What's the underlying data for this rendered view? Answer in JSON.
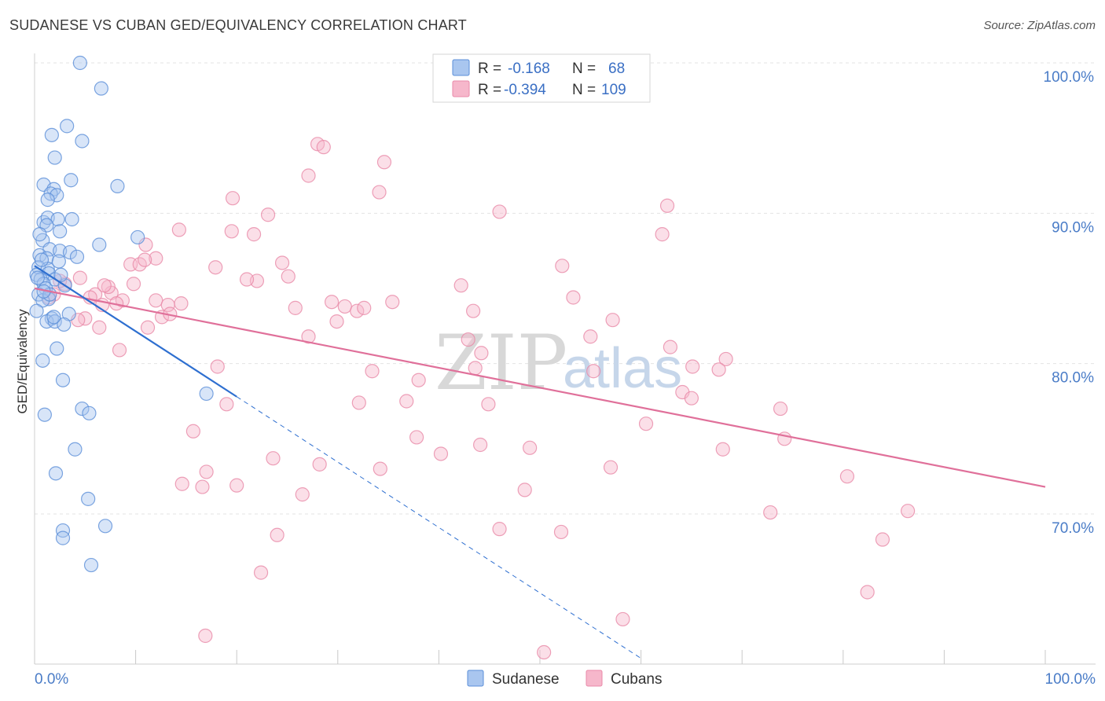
{
  "header": {
    "title": "SUDANESE VS CUBAN GED/EQUIVALENCY CORRELATION CHART",
    "source": "Source: ZipAtlas.com"
  },
  "watermark": {
    "part1": "ZIP",
    "part2": "atlas"
  },
  "legend": {
    "rows": [
      {
        "r_label": "R =",
        "r_value": "-0.168",
        "n_label": "N =",
        "n_value": "68",
        "color": "#a9c6ef"
      },
      {
        "r_label": "R =",
        "r_value": "-0.394",
        "n_label": "N =",
        "n_value": "109",
        "color": "#f6b7cb"
      }
    ]
  },
  "bottom_legend": {
    "items": [
      "Sudanese",
      "Cubans"
    ]
  },
  "colors": {
    "sudanese_fill": "#a9c6ef",
    "sudanese_stroke": "#5b8fd8",
    "sudanese_line": "#2e6fd0",
    "cubans_fill": "#f6b7cb",
    "cubans_stroke": "#e98aa8",
    "cubans_line": "#e0709a",
    "grid": "#e3e3e3",
    "axis_text": "#4a7cc7"
  },
  "chart_data": {
    "type": "scatter",
    "title": "SUDANESE VS CUBAN GED/EQUIVALENCY CORRELATION CHART",
    "xlabel": "",
    "ylabel": "GED/Equivalency",
    "xlim": [
      0,
      100
    ],
    "ylim": [
      60,
      101
    ],
    "x_tick_labels": [
      "0.0%",
      "100.0%"
    ],
    "y_ticks": [
      70,
      80,
      90,
      100
    ],
    "y_tick_labels": [
      "70.0%",
      "80.0%",
      "90.0%",
      "100.0%"
    ],
    "series": [
      {
        "name": "Sudanese",
        "r": -0.168,
        "n": 68,
        "trend": {
          "x0": 0,
          "y0": 86.5,
          "x1": 20,
          "y1": 77.8,
          "dashed_to_x": 60,
          "dashed_to_y": 60.4
        },
        "points": [
          [
            4.5,
            100.0
          ],
          [
            6.6,
            98.3
          ],
          [
            3.2,
            95.8
          ],
          [
            1.7,
            95.2
          ],
          [
            4.7,
            94.8
          ],
          [
            2.0,
            93.7
          ],
          [
            3.6,
            92.2
          ],
          [
            0.9,
            91.9
          ],
          [
            1.9,
            91.6
          ],
          [
            8.2,
            91.8
          ],
          [
            1.6,
            91.3
          ],
          [
            2.2,
            91.2
          ],
          [
            1.3,
            90.9
          ],
          [
            0.9,
            89.4
          ],
          [
            1.3,
            89.7
          ],
          [
            2.3,
            89.6
          ],
          [
            3.7,
            89.6
          ],
          [
            1.2,
            89.2
          ],
          [
            2.5,
            88.8
          ],
          [
            0.8,
            88.2
          ],
          [
            10.2,
            88.4
          ],
          [
            6.4,
            87.9
          ],
          [
            1.5,
            87.6
          ],
          [
            2.5,
            87.5
          ],
          [
            3.5,
            87.4
          ],
          [
            0.5,
            87.2
          ],
          [
            1.2,
            87.0
          ],
          [
            2.4,
            86.8
          ],
          [
            0.4,
            86.4
          ],
          [
            1.3,
            86.3
          ],
          [
            0.2,
            85.9
          ],
          [
            1.4,
            86.0
          ],
          [
            0.6,
            85.6
          ],
          [
            2.0,
            85.6
          ],
          [
            0.9,
            85.3
          ],
          [
            1.1,
            85.0
          ],
          [
            0.4,
            84.6
          ],
          [
            1.4,
            84.3
          ],
          [
            0.8,
            84.2
          ],
          [
            0.2,
            83.5
          ],
          [
            3.4,
            83.3
          ],
          [
            1.7,
            83.0
          ],
          [
            1.2,
            82.8
          ],
          [
            2.0,
            82.8
          ],
          [
            2.9,
            82.6
          ],
          [
            2.2,
            81.0
          ],
          [
            0.8,
            80.2
          ],
          [
            2.8,
            78.9
          ],
          [
            17.0,
            78.0
          ],
          [
            4.7,
            77.0
          ],
          [
            5.4,
            76.7
          ],
          [
            1.0,
            76.6
          ],
          [
            4.0,
            74.3
          ],
          [
            2.1,
            72.7
          ],
          [
            5.3,
            71.0
          ],
          [
            7.0,
            69.2
          ],
          [
            2.8,
            68.9
          ],
          [
            2.8,
            68.4
          ],
          [
            5.6,
            66.6
          ],
          [
            0.3,
            85.7
          ],
          [
            1.9,
            83.1
          ],
          [
            3.0,
            85.2
          ],
          [
            0.7,
            86.9
          ],
          [
            2.6,
            85.9
          ],
          [
            1.5,
            84.6
          ],
          [
            0.5,
            88.6
          ],
          [
            4.2,
            87.1
          ],
          [
            0.9,
            84.8
          ]
        ]
      },
      {
        "name": "Cubans",
        "r": -0.394,
        "n": 109,
        "trend": {
          "x0": 0,
          "y0": 85.0,
          "x1": 100,
          "y1": 71.8
        },
        "points": [
          [
            28.0,
            94.6
          ],
          [
            28.6,
            94.4
          ],
          [
            34.6,
            93.4
          ],
          [
            27.1,
            92.5
          ],
          [
            34.1,
            91.4
          ],
          [
            19.6,
            91.0
          ],
          [
            46.0,
            90.1
          ],
          [
            62.6,
            90.5
          ],
          [
            23.1,
            89.9
          ],
          [
            14.3,
            88.9
          ],
          [
            19.5,
            88.8
          ],
          [
            21.7,
            88.6
          ],
          [
            62.1,
            88.6
          ],
          [
            11.0,
            87.9
          ],
          [
            12.0,
            87.0
          ],
          [
            9.5,
            86.6
          ],
          [
            10.4,
            86.6
          ],
          [
            17.9,
            86.4
          ],
          [
            24.5,
            86.7
          ],
          [
            52.2,
            86.5
          ],
          [
            22.0,
            85.5
          ],
          [
            21.0,
            85.6
          ],
          [
            25.1,
            85.8
          ],
          [
            9.8,
            85.3
          ],
          [
            3.0,
            85.3
          ],
          [
            42.2,
            85.2
          ],
          [
            1.9,
            84.6
          ],
          [
            6.0,
            84.6
          ],
          [
            7.6,
            84.7
          ],
          [
            5.5,
            84.4
          ],
          [
            7.3,
            85.1
          ],
          [
            12.0,
            84.2
          ],
          [
            13.2,
            83.9
          ],
          [
            14.5,
            84.0
          ],
          [
            8.7,
            84.2
          ],
          [
            6.7,
            83.9
          ],
          [
            25.8,
            83.7
          ],
          [
            29.4,
            84.1
          ],
          [
            30.7,
            83.8
          ],
          [
            31.9,
            83.5
          ],
          [
            32.6,
            83.7
          ],
          [
            35.4,
            84.1
          ],
          [
            43.4,
            83.5
          ],
          [
            53.3,
            84.4
          ],
          [
            12.6,
            83.1
          ],
          [
            13.4,
            83.3
          ],
          [
            5.0,
            83.0
          ],
          [
            4.3,
            82.9
          ],
          [
            29.9,
            82.8
          ],
          [
            11.2,
            82.4
          ],
          [
            6.4,
            82.4
          ],
          [
            57.2,
            82.9
          ],
          [
            27.1,
            81.8
          ],
          [
            42.9,
            81.6
          ],
          [
            55.0,
            81.8
          ],
          [
            62.9,
            81.1
          ],
          [
            8.4,
            80.9
          ],
          [
            44.2,
            80.7
          ],
          [
            68.4,
            80.3
          ],
          [
            18.1,
            79.8
          ],
          [
            33.4,
            79.5
          ],
          [
            43.6,
            79.7
          ],
          [
            55.3,
            79.5
          ],
          [
            65.1,
            79.8
          ],
          [
            67.7,
            79.6
          ],
          [
            38.0,
            78.9
          ],
          [
            64.1,
            78.1
          ],
          [
            65.0,
            77.7
          ],
          [
            32.1,
            77.4
          ],
          [
            36.8,
            77.5
          ],
          [
            44.9,
            77.3
          ],
          [
            19.0,
            77.3
          ],
          [
            73.8,
            77.0
          ],
          [
            60.5,
            76.0
          ],
          [
            15.7,
            75.5
          ],
          [
            37.8,
            75.1
          ],
          [
            74.2,
            75.0
          ],
          [
            44.1,
            74.6
          ],
          [
            49.0,
            74.4
          ],
          [
            68.1,
            74.3
          ],
          [
            40.2,
            74.0
          ],
          [
            23.6,
            73.7
          ],
          [
            28.2,
            73.3
          ],
          [
            34.2,
            73.0
          ],
          [
            57.0,
            73.1
          ],
          [
            17.0,
            72.8
          ],
          [
            80.4,
            72.5
          ],
          [
            14.6,
            72.0
          ],
          [
            16.6,
            71.8
          ],
          [
            20.0,
            71.9
          ],
          [
            26.5,
            71.3
          ],
          [
            48.5,
            71.6
          ],
          [
            86.4,
            70.2
          ],
          [
            72.8,
            70.1
          ],
          [
            46.0,
            69.0
          ],
          [
            52.1,
            68.8
          ],
          [
            24.0,
            68.6
          ],
          [
            83.9,
            68.3
          ],
          [
            22.4,
            66.1
          ],
          [
            82.4,
            64.8
          ],
          [
            58.2,
            63.0
          ],
          [
            16.9,
            61.9
          ],
          [
            50.4,
            60.8
          ],
          [
            6.9,
            85.2
          ],
          [
            1.4,
            84.4
          ],
          [
            4.5,
            85.7
          ],
          [
            2.5,
            85.5
          ],
          [
            8.1,
            84.0
          ],
          [
            10.9,
            86.9
          ]
        ]
      }
    ]
  }
}
